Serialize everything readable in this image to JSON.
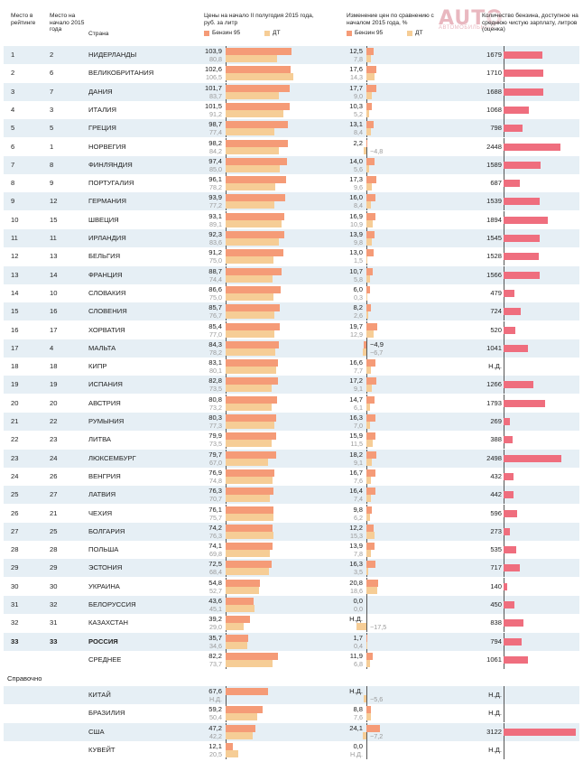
{
  "header": {
    "rank": "Место в рейтинге",
    "prev_rank": "Место на начало 2015 года",
    "country": "Страна",
    "prices": "Цены на начало II полугодия 2015 года, руб. за литр",
    "change": "Изменение цен по сравнению с началом 2015 года, %",
    "salary": "Количество бензина, доступное на среднюю чистую зарплату, литров (оценка)",
    "legend_95": "Бензин 95",
    "legend_dt": "ДТ"
  },
  "logo": {
    "text": "AUTO",
    "sub": "АВТОМОБИЛЬНЫЙ"
  },
  "colors": {
    "petrol95": "#f59b77",
    "diesel": "#f6cd96",
    "salary": "#ef6e7e",
    "shade": "#e6eff5"
  },
  "section_label": "Справочно",
  "chart_data": {
    "type": "table",
    "columns": [
      "Место в рейтинге",
      "Место на начало 2015 года",
      "Страна",
      "Бензин 95",
      "ДТ",
      "Изменение Бензин 95",
      "Изменение ДТ",
      "Литров на зарплату"
    ],
    "rows": [
      {
        "rank": "1",
        "prev": "2",
        "country": "НИДЕРЛАНДЫ",
        "p95": "103,9",
        "pdt": "80,8",
        "c95": "12,5",
        "cdt": "7,8",
        "sal": "1679"
      },
      {
        "rank": "2",
        "prev": "6",
        "country": "ВЕЛИКОБРИТАНИЯ",
        "p95": "102,6",
        "pdt": "106,5",
        "c95": "17,6",
        "cdt": "14,3",
        "sal": "1710"
      },
      {
        "rank": "3",
        "prev": "7",
        "country": "ДАНИЯ",
        "p95": "101,7",
        "pdt": "83,7",
        "c95": "17,7",
        "cdt": "9,0",
        "sal": "1688"
      },
      {
        "rank": "4",
        "prev": "3",
        "country": "ИТАЛИЯ",
        "p95": "101,5",
        "pdt": "91,2",
        "c95": "10,3",
        "cdt": "5,2",
        "sal": "1068"
      },
      {
        "rank": "5",
        "prev": "5",
        "country": "ГРЕЦИЯ",
        "p95": "98,7",
        "pdt": "77,4",
        "c95": "13,1",
        "cdt": "8,4",
        "sal": "798"
      },
      {
        "rank": "6",
        "prev": "1",
        "country": "НОРВЕГИЯ",
        "p95": "98,2",
        "pdt": "84,2",
        "c95": "2,2",
        "cdt": "−4,8",
        "sal": "2448"
      },
      {
        "rank": "7",
        "prev": "8",
        "country": "ФИНЛЯНДИЯ",
        "p95": "97,4",
        "pdt": "85,0",
        "c95": "14,0",
        "cdt": "5,6",
        "sal": "1589"
      },
      {
        "rank": "8",
        "prev": "9",
        "country": "ПОРТУГАЛИЯ",
        "p95": "96,1",
        "pdt": "78,2",
        "c95": "17,3",
        "cdt": "9,6",
        "sal": "687"
      },
      {
        "rank": "9",
        "prev": "12",
        "country": "ГЕРМАНИЯ",
        "p95": "93,9",
        "pdt": "77,2",
        "c95": "16,0",
        "cdt": "8,4",
        "sal": "1539"
      },
      {
        "rank": "10",
        "prev": "15",
        "country": "ШВЕЦИЯ",
        "p95": "93,1",
        "pdt": "89,1",
        "c95": "16,9",
        "cdt": "10,9",
        "sal": "1894"
      },
      {
        "rank": "11",
        "prev": "11",
        "country": "ИРЛАНДИЯ",
        "p95": "92,3",
        "pdt": "83,6",
        "c95": "13,9",
        "cdt": "9,8",
        "sal": "1545"
      },
      {
        "rank": "12",
        "prev": "13",
        "country": "БЕЛЬГИЯ",
        "p95": "91,2",
        "pdt": "75,0",
        "c95": "13,0",
        "cdt": "1,5",
        "sal": "1528"
      },
      {
        "rank": "13",
        "prev": "14",
        "country": "ФРАНЦИЯ",
        "p95": "88,7",
        "pdt": "74,4",
        "c95": "10,7",
        "cdt": "5,8",
        "sal": "1566"
      },
      {
        "rank": "14",
        "prev": "10",
        "country": "СЛОВАКИЯ",
        "p95": "86,6",
        "pdt": "75,0",
        "c95": "6,0",
        "cdt": "0,3",
        "sal": "479"
      },
      {
        "rank": "15",
        "prev": "16",
        "country": "СЛОВЕНИЯ",
        "p95": "85,7",
        "pdt": "76,7",
        "c95": "8,2",
        "cdt": "2,6",
        "sal": "724"
      },
      {
        "rank": "16",
        "prev": "17",
        "country": "ХОРВАТИЯ",
        "p95": "85,4",
        "pdt": "77,0",
        "c95": "19,7",
        "cdt": "12,9",
        "sal": "520"
      },
      {
        "rank": "17",
        "prev": "4",
        "country": "МАЛЬТА",
        "p95": "84,3",
        "pdt": "78,2",
        "c95": "−4,9",
        "cdt": "−6,7",
        "sal": "1041"
      },
      {
        "rank": "18",
        "prev": "18",
        "country": "КИПР",
        "p95": "83,1",
        "pdt": "80,1",
        "c95": "16,6",
        "cdt": "7,7",
        "sal": "Н.Д."
      },
      {
        "rank": "19",
        "prev": "19",
        "country": "ИСПАНИЯ",
        "p95": "82,8",
        "pdt": "73,5",
        "c95": "17,2",
        "cdt": "9,1",
        "sal": "1266"
      },
      {
        "rank": "20",
        "prev": "20",
        "country": "АВСТРИЯ",
        "p95": "80,8",
        "pdt": "73,2",
        "c95": "14,7",
        "cdt": "6,1",
        "sal": "1793"
      },
      {
        "rank": "21",
        "prev": "22",
        "country": "РУМЫНИЯ",
        "p95": "80,3",
        "pdt": "77,3",
        "c95": "16,3",
        "cdt": "7,0",
        "sal": "269"
      },
      {
        "rank": "22",
        "prev": "23",
        "country": "ЛИТВА",
        "p95": "79,9",
        "pdt": "73,5",
        "c95": "15,9",
        "cdt": "11,5",
        "sal": "388"
      },
      {
        "rank": "23",
        "prev": "24",
        "country": "ЛЮКСЕМБУРГ",
        "p95": "79,7",
        "pdt": "67,0",
        "c95": "18,2",
        "cdt": "9,1",
        "sal": "2498"
      },
      {
        "rank": "24",
        "prev": "26",
        "country": "ВЕНГРИЯ",
        "p95": "76,9",
        "pdt": "74,8",
        "c95": "16,7",
        "cdt": "7,6",
        "sal": "432"
      },
      {
        "rank": "25",
        "prev": "27",
        "country": "ЛАТВИЯ",
        "p95": "76,3",
        "pdt": "70,7",
        "c95": "16,4",
        "cdt": "7,4",
        "sal": "442"
      },
      {
        "rank": "26",
        "prev": "21",
        "country": "ЧЕХИЯ",
        "p95": "76,1",
        "pdt": "75,7",
        "c95": "9,8",
        "cdt": "6,2",
        "sal": "596"
      },
      {
        "rank": "27",
        "prev": "25",
        "country": "БОЛГАРИЯ",
        "p95": "74,2",
        "pdt": "76,3",
        "c95": "12,2",
        "cdt": "15,3",
        "sal": "273"
      },
      {
        "rank": "28",
        "prev": "28",
        "country": "ПОЛЬША",
        "p95": "74,1",
        "pdt": "69,8",
        "c95": "13,9",
        "cdt": "7,8",
        "sal": "535"
      },
      {
        "rank": "29",
        "prev": "29",
        "country": "ЭСТОНИЯ",
        "p95": "72,5",
        "pdt": "68,4",
        "c95": "16,3",
        "cdt": "3,5",
        "sal": "717"
      },
      {
        "rank": "30",
        "prev": "30",
        "country": "УКРАИНА",
        "p95": "54,8",
        "pdt": "52,7",
        "c95": "20,8",
        "cdt": "18,6",
        "sal": "140"
      },
      {
        "rank": "31",
        "prev": "32",
        "country": "БЕЛОРУССИЯ",
        "p95": "43,6",
        "pdt": "45,1",
        "c95": "0,0",
        "cdt": "0,0",
        "sal": "450"
      },
      {
        "rank": "32",
        "prev": "31",
        "country": "КАЗАХСТАН",
        "p95": "39,2",
        "pdt": "29,0",
        "c95": "Н.Д.",
        "cdt": "−17,5",
        "sal": "838"
      },
      {
        "rank": "33",
        "prev": "33",
        "country": "РОССИЯ",
        "p95": "35,7",
        "pdt": "34,6",
        "c95": "1,7",
        "cdt": "0,4",
        "sal": "794",
        "bold": true
      },
      {
        "rank": "",
        "prev": "",
        "country": "СРЕДНЕЕ",
        "p95": "82,2",
        "pdt": "73,7",
        "c95": "11,9",
        "cdt": "6,8",
        "sal": "1061"
      }
    ],
    "reference_rows": [
      {
        "country": "КИТАЙ",
        "p95": "67,6",
        "pdt": "Н.Д.",
        "c95": "Н.Д.",
        "cdt": "−5,6",
        "sal": "Н.Д."
      },
      {
        "country": "БРАЗИЛИЯ",
        "p95": "59,2",
        "pdt": "50,4",
        "c95": "8,8",
        "cdt": "7,6",
        "sal": "Н.Д."
      },
      {
        "country": "США",
        "p95": "47,2",
        "pdt": "42,2",
        "c95": "24,1",
        "cdt": "−7,2",
        "sal": "3122"
      },
      {
        "country": "КУВЕЙТ",
        "p95": "12,1",
        "pdt": "20,5",
        "c95": "0,0",
        "cdt": "Н.Д.",
        "sal": "Н.Д."
      }
    ]
  }
}
